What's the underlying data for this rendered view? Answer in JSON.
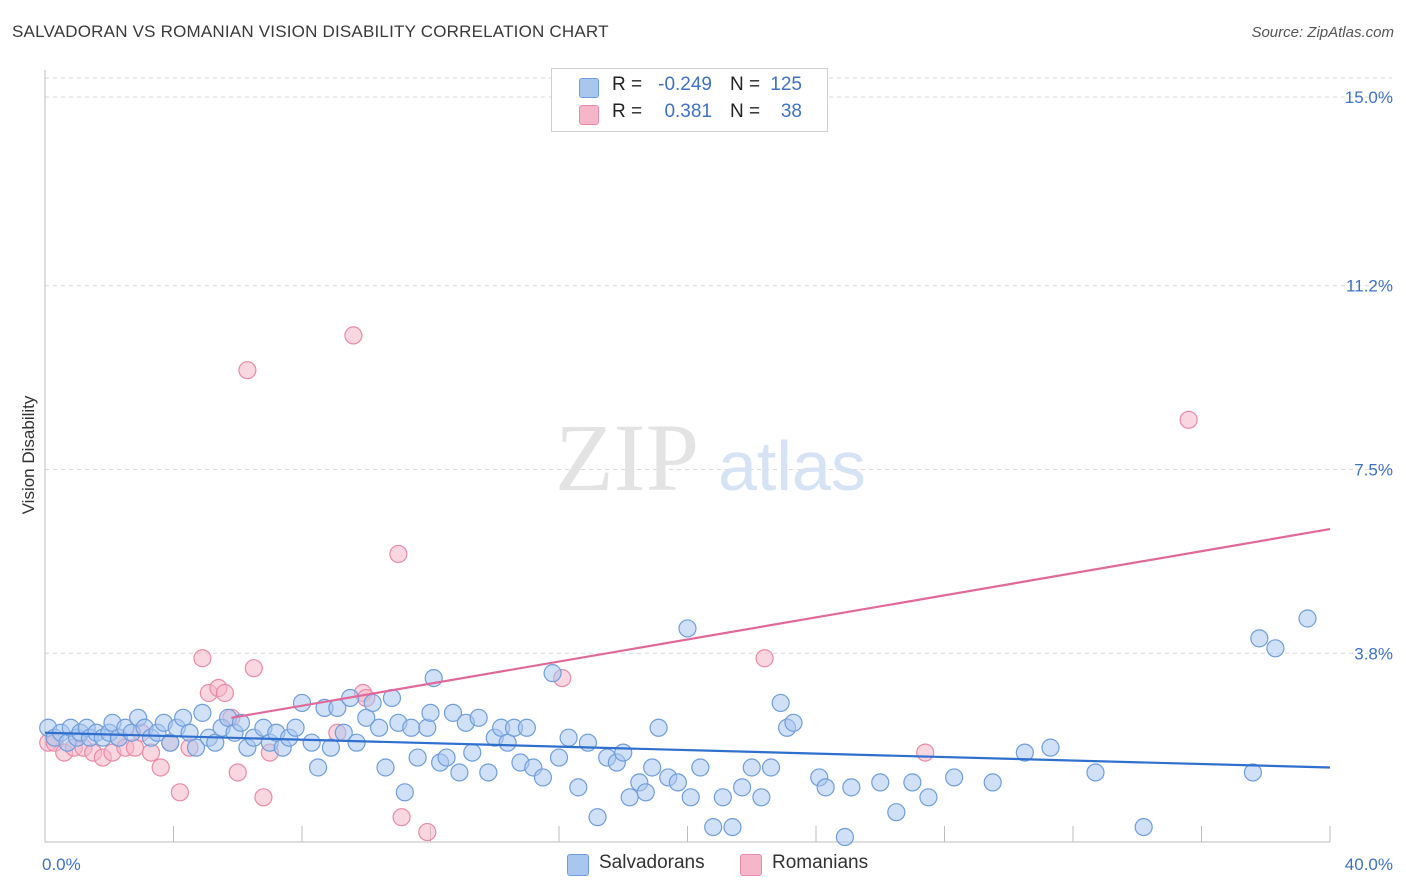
{
  "title": "SALVADORAN VS ROMANIAN VISION DISABILITY CORRELATION CHART",
  "source": "Source: ZipAtlas.com",
  "watermark": {
    "zip": "ZIP",
    "atlas": "atlas"
  },
  "legend": {
    "rows": [
      {
        "r_label": "R =",
        "r_value": "-0.249",
        "n_label": "N =",
        "n_value": "125"
      },
      {
        "r_label": "R =",
        "r_value": "0.381",
        "n_label": "N =",
        "n_value": "38"
      }
    ]
  },
  "bottom_legend": {
    "salvadorans": "Salvadorans",
    "romanians": "Romanians"
  },
  "colors": {
    "blue_fill": "#a9c6ef",
    "blue_stroke": "#6f9edc",
    "blue_line": "#2f6fce",
    "pink_fill": "#f4b6c8",
    "pink_stroke": "#e98aa8",
    "pink_line": "#e0699a",
    "grid": "#d8d8d8",
    "tick": "#3f72c6"
  },
  "chart_data": {
    "type": "scatter",
    "title": "SALVADORAN VS ROMANIAN VISION DISABILITY CORRELATION CHART",
    "xlabel": "",
    "ylabel": "Vision Disability",
    "xlim": [
      0,
      40
    ],
    "ylim": [
      0,
      15.5
    ],
    "x_tick_labels": [
      "0.0%",
      "40.0%"
    ],
    "y_ticks": [
      3.8,
      7.5,
      11.2,
      15.0
    ],
    "y_tick_labels": [
      "3.8%",
      "7.5%",
      "11.2%",
      "15.0%"
    ],
    "grid": "horizontal dashed",
    "legend_position": "top-center",
    "series": [
      {
        "name": "Salvadorans",
        "color": "#a9c6ef",
        "r": -0.249,
        "n": 125,
        "trend": {
          "x": [
            0,
            40
          ],
          "y": [
            2.2,
            1.5
          ]
        },
        "points": [
          [
            0.1,
            2.3
          ],
          [
            0.3,
            2.1
          ],
          [
            0.5,
            2.2
          ],
          [
            0.7,
            2.0
          ],
          [
            0.8,
            2.3
          ],
          [
            1.0,
            2.1
          ],
          [
            1.1,
            2.2
          ],
          [
            1.3,
            2.3
          ],
          [
            1.4,
            2.1
          ],
          [
            1.6,
            2.2
          ],
          [
            1.8,
            2.1
          ],
          [
            2.0,
            2.2
          ],
          [
            2.1,
            2.4
          ],
          [
            2.3,
            2.1
          ],
          [
            2.5,
            2.3
          ],
          [
            2.7,
            2.2
          ],
          [
            2.9,
            2.5
          ],
          [
            3.1,
            2.3
          ],
          [
            3.3,
            2.1
          ],
          [
            3.5,
            2.2
          ],
          [
            3.7,
            2.4
          ],
          [
            3.9,
            2.0
          ],
          [
            4.1,
            2.3
          ],
          [
            4.3,
            2.5
          ],
          [
            4.5,
            2.2
          ],
          [
            4.7,
            1.9
          ],
          [
            4.9,
            2.6
          ],
          [
            5.1,
            2.1
          ],
          [
            5.3,
            2.0
          ],
          [
            5.5,
            2.3
          ],
          [
            5.7,
            2.5
          ],
          [
            5.9,
            2.2
          ],
          [
            6.1,
            2.4
          ],
          [
            6.3,
            1.9
          ],
          [
            6.5,
            2.1
          ],
          [
            6.8,
            2.3
          ],
          [
            7.0,
            2.0
          ],
          [
            7.2,
            2.2
          ],
          [
            7.4,
            1.9
          ],
          [
            7.6,
            2.1
          ],
          [
            7.8,
            2.3
          ],
          [
            8.0,
            2.8
          ],
          [
            8.3,
            2.0
          ],
          [
            8.5,
            1.5
          ],
          [
            8.7,
            2.7
          ],
          [
            8.9,
            1.9
          ],
          [
            9.1,
            2.7
          ],
          [
            9.3,
            2.2
          ],
          [
            9.5,
            2.9
          ],
          [
            9.7,
            2.0
          ],
          [
            10.0,
            2.5
          ],
          [
            10.2,
            2.8
          ],
          [
            10.4,
            2.3
          ],
          [
            10.6,
            1.5
          ],
          [
            10.8,
            2.9
          ],
          [
            11.0,
            2.4
          ],
          [
            11.2,
            1.0
          ],
          [
            11.4,
            2.3
          ],
          [
            11.6,
            1.7
          ],
          [
            11.9,
            2.3
          ],
          [
            12.1,
            3.3
          ],
          [
            12.3,
            1.6
          ],
          [
            12.5,
            1.7
          ],
          [
            12.7,
            2.6
          ],
          [
            12.9,
            1.4
          ],
          [
            13.1,
            2.4
          ],
          [
            13.3,
            1.8
          ],
          [
            13.5,
            2.5
          ],
          [
            13.8,
            1.4
          ],
          [
            14.0,
            2.1
          ],
          [
            14.2,
            2.3
          ],
          [
            14.4,
            2.0
          ],
          [
            14.6,
            2.3
          ],
          [
            14.8,
            1.6
          ],
          [
            15.0,
            2.3
          ],
          [
            15.2,
            1.5
          ],
          [
            15.5,
            1.3
          ],
          [
            15.8,
            3.4
          ],
          [
            16.0,
            1.7
          ],
          [
            16.3,
            2.1
          ],
          [
            16.6,
            1.1
          ],
          [
            16.9,
            2.0
          ],
          [
            17.2,
            0.5
          ],
          [
            17.5,
            1.7
          ],
          [
            17.8,
            1.6
          ],
          [
            18.0,
            1.8
          ],
          [
            18.2,
            0.9
          ],
          [
            18.5,
            1.2
          ],
          [
            18.7,
            1.0
          ],
          [
            18.9,
            1.5
          ],
          [
            19.1,
            2.3
          ],
          [
            19.4,
            1.3
          ],
          [
            19.7,
            1.2
          ],
          [
            20.1,
            0.9
          ],
          [
            20.4,
            1.5
          ],
          [
            20.8,
            0.3
          ],
          [
            21.1,
            0.9
          ],
          [
            21.4,
            0.3
          ],
          [
            21.7,
            1.1
          ],
          [
            22.0,
            1.5
          ],
          [
            22.3,
            0.9
          ],
          [
            22.6,
            1.5
          ],
          [
            22.9,
            2.8
          ],
          [
            23.1,
            2.3
          ],
          [
            23.3,
            2.4
          ],
          [
            24.1,
            1.3
          ],
          [
            24.3,
            1.1
          ],
          [
            24.9,
            0.1
          ],
          [
            25.1,
            1.1
          ],
          [
            26.0,
            1.2
          ],
          [
            26.5,
            0.6
          ],
          [
            27.0,
            1.2
          ],
          [
            27.5,
            0.9
          ],
          [
            28.3,
            1.3
          ],
          [
            29.5,
            1.2
          ],
          [
            30.5,
            1.8
          ],
          [
            31.3,
            1.9
          ],
          [
            32.7,
            1.4
          ],
          [
            34.2,
            0.3
          ],
          [
            37.6,
            1.4
          ],
          [
            37.8,
            4.1
          ],
          [
            38.3,
            3.9
          ],
          [
            39.3,
            4.5
          ],
          [
            20.0,
            4.3
          ],
          [
            12.0,
            2.6
          ]
        ]
      },
      {
        "name": "Romanians",
        "color": "#f4b6c8",
        "r": 0.381,
        "n": 38,
        "trend": {
          "x": [
            5.8,
            40
          ],
          "y": [
            2.5,
            6.3
          ]
        },
        "points": [
          [
            0.1,
            2.0
          ],
          [
            0.3,
            2.0
          ],
          [
            0.6,
            1.8
          ],
          [
            0.9,
            1.9
          ],
          [
            1.2,
            1.9
          ],
          [
            1.5,
            1.8
          ],
          [
            1.8,
            1.7
          ],
          [
            2.1,
            1.8
          ],
          [
            2.3,
            2.1
          ],
          [
            2.5,
            1.9
          ],
          [
            2.8,
            1.9
          ],
          [
            3.0,
            2.2
          ],
          [
            3.3,
            1.8
          ],
          [
            3.6,
            1.5
          ],
          [
            3.9,
            2.0
          ],
          [
            4.2,
            1.0
          ],
          [
            4.5,
            1.9
          ],
          [
            4.9,
            3.7
          ],
          [
            5.1,
            3.0
          ],
          [
            5.4,
            3.1
          ],
          [
            5.6,
            3.0
          ],
          [
            5.8,
            2.5
          ],
          [
            6.0,
            1.4
          ],
          [
            6.3,
            9.5
          ],
          [
            6.5,
            3.5
          ],
          [
            6.8,
            0.9
          ],
          [
            7.0,
            1.8
          ],
          [
            9.1,
            2.2
          ],
          [
            9.6,
            10.2
          ],
          [
            9.9,
            3.0
          ],
          [
            10.0,
            2.9
          ],
          [
            11.0,
            5.8
          ],
          [
            11.1,
            0.5
          ],
          [
            11.9,
            0.2
          ],
          [
            16.1,
            3.3
          ],
          [
            22.4,
            3.7
          ],
          [
            27.4,
            1.8
          ],
          [
            35.6,
            8.5
          ]
        ]
      }
    ]
  }
}
